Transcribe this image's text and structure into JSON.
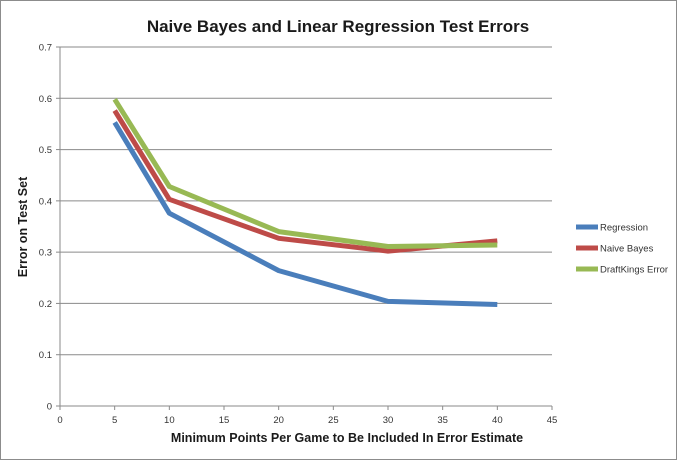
{
  "chart_data": {
    "type": "line",
    "title": "Naive Bayes and Linear Regression Test Errors",
    "xlabel": "Minimum Points Per Game to Be Included In Error Estimate",
    "ylabel": "Error on Test Set",
    "xlim": [
      0,
      45
    ],
    "ylim": [
      0,
      0.7
    ],
    "xticks": [
      0,
      5,
      10,
      15,
      20,
      25,
      30,
      35,
      40,
      45
    ],
    "xtick_labels": [
      "0",
      "5",
      "10",
      "15",
      "20",
      "25",
      "30",
      "35",
      "40",
      "45"
    ],
    "yticks": [
      0,
      0.1,
      0.2,
      0.3,
      0.4,
      0.5,
      0.6,
      0.7
    ],
    "ytick_labels": [
      "0",
      "0.1",
      "0.2",
      "0.3",
      "0.4",
      "0.5",
      "0.6",
      "0.7"
    ],
    "grid": "horizontal",
    "legend_position": "right",
    "x": [
      5,
      10,
      20,
      30,
      40
    ],
    "series": [
      {
        "name": "Regression",
        "color": "#4a7ebb",
        "values": [
          0.553,
          0.376,
          0.264,
          0.204,
          0.198
        ]
      },
      {
        "name": "Naive Bayes",
        "color": "#be4b48",
        "values": [
          0.576,
          0.403,
          0.327,
          0.302,
          0.322
        ]
      },
      {
        "name": "DraftKings Error",
        "color": "#98b954",
        "values": [
          0.598,
          0.428,
          0.34,
          0.311,
          0.314
        ]
      }
    ]
  }
}
